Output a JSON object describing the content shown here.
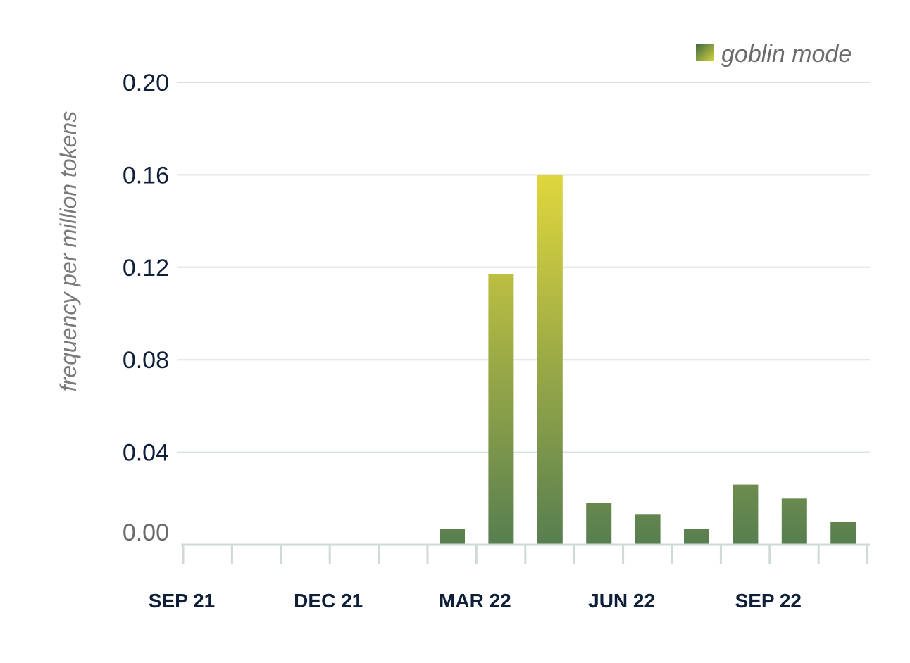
{
  "chart_data": {
    "type": "bar",
    "legend": {
      "position": "top-right",
      "entries": [
        "goblin mode"
      ]
    },
    "ylabel": "frequency per million tokens",
    "xlabel": "",
    "ylim": [
      0,
      0.2
    ],
    "yticks": [
      "0.00",
      "0.04",
      "0.08",
      "0.12",
      "0.16",
      "0.20"
    ],
    "yticks_values": [
      0,
      0.04,
      0.08,
      0.12,
      0.16,
      0.2
    ],
    "xtick_labels": [
      "SEP 21",
      "DEC 21",
      "MAR 22",
      "JUN 22",
      "SEP 22"
    ],
    "categories": [
      "Sep 2021",
      "Oct 2021",
      "Nov 2021",
      "Dec 2021",
      "Jan 2022",
      "Feb 2022",
      "Mar 2022",
      "Apr 2022",
      "May 2022",
      "Jun 2022",
      "Jul 2022",
      "Aug 2022",
      "Sep 2022",
      "Oct 2022"
    ],
    "series": [
      {
        "name": "goblin mode",
        "values": [
          0,
          0,
          0,
          0,
          0,
          0.007,
          0.117,
          0.16,
          0.018,
          0.013,
          0.007,
          0.026,
          0.02,
          0.01
        ]
      }
    ],
    "grid": true,
    "colors": {
      "bar_low": "#577e50",
      "bar_high": "#e2d83c"
    }
  }
}
